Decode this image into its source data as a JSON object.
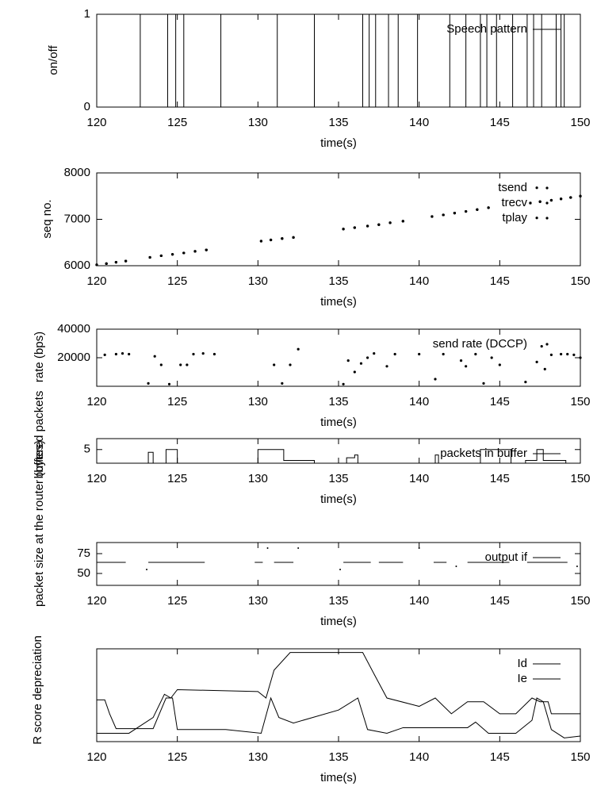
{
  "chart_data": [
    {
      "type": "step",
      "ylabel": "on/off",
      "xlabel": "time(s)",
      "xlim": [
        120,
        150
      ],
      "xticks": [
        120,
        125,
        130,
        135,
        140,
        145,
        150
      ],
      "ylim": [
        0,
        1
      ],
      "yticks": [
        0,
        1
      ],
      "legend": "top right",
      "series": [
        {
          "name": "Speech pattern",
          "color": "#000000",
          "x": [
            120,
            122.7,
            124.4,
            124.9,
            125.4,
            127.7,
            131.2,
            133.5,
            136.5,
            136.9,
            137.3,
            138.1,
            138.7,
            139.9,
            141.9,
            142.9,
            143.8,
            144.2,
            144.8,
            145.8,
            146.7,
            147.1,
            147.6,
            148.5,
            148.8,
            149.0
          ],
          "values": [
            1,
            0,
            1,
            0,
            1,
            0,
            1,
            0,
            1,
            0,
            1,
            0,
            1,
            0,
            1,
            0,
            1,
            0,
            1,
            0,
            1,
            0,
            1,
            0,
            1,
            0
          ]
        }
      ]
    },
    {
      "type": "scatter",
      "ylabel": "seq no.",
      "xlabel": "time(s)",
      "xlim": [
        120,
        150
      ],
      "xticks": [
        120,
        125,
        130,
        135,
        140,
        145,
        150
      ],
      "ylim": [
        6000,
        8000
      ],
      "yticks": [
        6000,
        7000,
        8000
      ],
      "legend": "top right",
      "series": [
        {
          "name": "tsend",
          "color": "#000000",
          "x": [
            120,
            120.6,
            121.2,
            121.8,
            123.3,
            124,
            124.7,
            125.4,
            126.1,
            126.8,
            130.2,
            130.8,
            131.5,
            132.2,
            135.3,
            136,
            136.8,
            137.5,
            138.2,
            139,
            140.8,
            141.5,
            142.2,
            142.9,
            143.6,
            144.3,
            146.9,
            147.3,
            147.5,
            148.2,
            148.8,
            149.4,
            150
          ],
          "values": [
            6020,
            6045,
            6075,
            6100,
            6180,
            6215,
            6245,
            6275,
            6310,
            6340,
            6530,
            6555,
            6585,
            6610,
            6790,
            6820,
            6855,
            6885,
            6925,
            6960,
            7060,
            7095,
            7135,
            7170,
            7210,
            7250,
            7350,
            7680,
            7380,
            7410,
            7440,
            7470,
            7500
          ]
        },
        {
          "name": "trecv",
          "color": "#000000",
          "x": [
            120,
            120.6,
            121.2,
            121.8,
            123.3,
            124,
            124.7,
            125.4,
            126.1,
            126.8,
            130.2,
            130.8,
            131.5,
            132.2,
            135.3,
            136,
            136.8,
            137.5,
            138.2,
            139,
            140.8,
            141.5,
            142.2,
            142.9,
            143.6,
            144.3,
            146.9,
            147.5,
            148.2,
            148.8,
            149.4,
            150
          ],
          "values": [
            6020,
            6045,
            6075,
            6100,
            6180,
            6215,
            6245,
            6275,
            6310,
            6340,
            6530,
            6555,
            6585,
            6610,
            6790,
            6820,
            6855,
            6885,
            6925,
            6960,
            7060,
            7095,
            7135,
            7170,
            7210,
            7250,
            7350,
            7380,
            7410,
            7440,
            7470,
            7500
          ]
        },
        {
          "name": "tplay",
          "color": "#000000",
          "x": [
            120,
            120.6,
            121.2,
            121.8,
            123.3,
            124,
            124.7,
            125.4,
            126.1,
            126.8,
            130.2,
            130.8,
            131.5,
            132.2,
            135.3,
            136,
            136.8,
            137.5,
            138.2,
            139,
            140.8,
            141.5,
            142.2,
            142.9,
            143.6,
            144.3,
            146.9,
            147.3,
            147.5,
            148.2,
            148.8,
            149.4,
            150
          ],
          "values": [
            6020,
            6045,
            6075,
            6100,
            6180,
            6215,
            6245,
            6275,
            6310,
            6340,
            6530,
            6555,
            6585,
            6610,
            6790,
            6820,
            6855,
            6885,
            6925,
            6960,
            7060,
            7095,
            7135,
            7170,
            7210,
            7250,
            7350,
            7030,
            7380,
            7410,
            7440,
            7470,
            7500
          ]
        }
      ]
    },
    {
      "type": "scatter",
      "ylabel": "rate (bps)",
      "xlabel": "time(s)",
      "xlim": [
        120,
        150
      ],
      "xticks": [
        120,
        125,
        130,
        135,
        140,
        145,
        150
      ],
      "ylim": [
        0,
        40000
      ],
      "yticks": [
        20000,
        40000
      ],
      "legend": "top right",
      "series": [
        {
          "name": "send rate (DCCP)",
          "color": "#000000",
          "x": [
            120.5,
            121.2,
            121.6,
            122,
            123.2,
            123.6,
            124,
            124.5,
            125.2,
            125.6,
            126,
            126.6,
            127.3,
            131,
            131.5,
            132,
            132.5,
            135.3,
            135.6,
            136,
            136.4,
            136.8,
            137.2,
            138,
            138.5,
            140,
            141,
            141.5,
            142.6,
            142.9,
            143.5,
            144,
            144.5,
            145,
            146.6,
            147.3,
            147.6,
            147.8,
            148.2,
            148.8,
            149.2,
            149.6,
            150
          ],
          "values": [
            22000,
            22500,
            23000,
            22500,
            2000,
            21000,
            15000,
            1500,
            15000,
            15000,
            22500,
            23000,
            22500,
            15000,
            2000,
            15000,
            26000,
            1500,
            18000,
            10000,
            16000,
            20000,
            23000,
            14000,
            22500,
            22500,
            5000,
            22500,
            18000,
            14000,
            22500,
            2000,
            20000,
            15000,
            3000,
            17000,
            28000,
            12000,
            22000,
            22500,
            22500,
            22000,
            20000
          ]
        }
      ]
    },
    {
      "type": "step",
      "ylabel": "buffered packets",
      "xlabel": "time(s)",
      "xlim": [
        120,
        150
      ],
      "xticks": [
        120,
        125,
        130,
        135,
        140,
        145,
        150
      ],
      "ylim": [
        0,
        9
      ],
      "yticks": [
        5
      ],
      "legend": "top right",
      "series": [
        {
          "name": "packets in buffer",
          "color": "#000000",
          "x": [
            120,
            123.2,
            123.5,
            124.3,
            125,
            130,
            131.6,
            133.5,
            135.5,
            136,
            136.2,
            141,
            141.2,
            143.8,
            145.7,
            146.6,
            147.3,
            147.7,
            149.1
          ],
          "values": [
            0,
            4,
            0,
            5,
            0,
            5,
            1,
            0,
            2,
            3,
            0,
            3,
            0,
            5,
            0,
            1,
            5,
            1,
            0
          ]
        }
      ]
    },
    {
      "type": "line",
      "ylabel": "packet size at the router (bytes)",
      "xlabel": "time(s)",
      "xlim": [
        120,
        150
      ],
      "xticks": [
        120,
        125,
        130,
        135,
        140,
        145,
        150
      ],
      "ylim": [
        35,
        89
      ],
      "yticks": [
        50,
        75
      ],
      "legend": "top right",
      "series": [
        {
          "name": "output if",
          "color": "#000000",
          "x": [
            120,
            121.8,
            121.9,
            123.1,
            123.15,
            123.2,
            126.7,
            126.8,
            129.8,
            130.3,
            130.4,
            130.6,
            130.7,
            131,
            132.2,
            132.3,
            132.5,
            132.6,
            135.1,
            135.2,
            135.3,
            137,
            137.1,
            137.5,
            139,
            139.1,
            140,
            140.1,
            140.9,
            141.7,
            141.8,
            142.3,
            142.4,
            143,
            145.6,
            145.7,
            146.7,
            149.2,
            149.3,
            149.8
          ],
          "values": [
            64,
            64,
            null,
            55,
            null,
            64,
            64,
            null,
            64,
            64,
            null,
            82,
            null,
            64,
            64,
            null,
            82,
            null,
            55,
            null,
            64,
            64,
            null,
            64,
            64,
            null,
            82,
            null,
            64,
            64,
            null,
            59,
            null,
            64,
            64,
            null,
            64,
            64,
            null,
            59
          ]
        }
      ]
    },
    {
      "type": "line",
      "ylabel": "R score depreciation",
      "xlabel": "time(s)",
      "xlim": [
        120,
        150
      ],
      "xticks": [
        120,
        125,
        130,
        135,
        140,
        145,
        150
      ],
      "ylim": [
        0,
        10
      ],
      "legend": "top right",
      "series": [
        {
          "name": "Id",
          "color": "#000000",
          "x": [
            120,
            120.5,
            120.8,
            121.2,
            123.5,
            124.3,
            124.7,
            125,
            128,
            130.2,
            130.8,
            131.3,
            132.2,
            135,
            136.2,
            136.8,
            138,
            139,
            143,
            143.5,
            144.3,
            146,
            147,
            147.3,
            147.7,
            148.2,
            149,
            150
          ],
          "values": [
            4.5,
            4.5,
            3.0,
            1.4,
            1.4,
            4.7,
            4.7,
            1.3,
            1.3,
            0.9,
            4.7,
            2.6,
            2.0,
            3.4,
            4.7,
            1.3,
            0.9,
            1.5,
            1.5,
            2.1,
            0.9,
            0.9,
            2.3,
            4.7,
            4.3,
            1.3,
            0.4,
            0.6
          ]
        },
        {
          "name": "Ie",
          "color": "#000000",
          "x": [
            120,
            122,
            123.5,
            124.2,
            124.6,
            125,
            130,
            130.5,
            131,
            132,
            136.5,
            137.2,
            138,
            140,
            141,
            142,
            143,
            144,
            145,
            146,
            147,
            147.5,
            148,
            148.2,
            149,
            150
          ],
          "values": [
            0.9,
            0.9,
            2.6,
            5.1,
            4.7,
            5.6,
            5.4,
            4.7,
            7.7,
            9.6,
            9.6,
            7.3,
            4.7,
            3.8,
            4.7,
            3.0,
            4.3,
            4.3,
            3.0,
            3.0,
            4.7,
            4.3,
            4.3,
            3.0,
            3.0,
            3.0
          ]
        }
      ]
    }
  ]
}
